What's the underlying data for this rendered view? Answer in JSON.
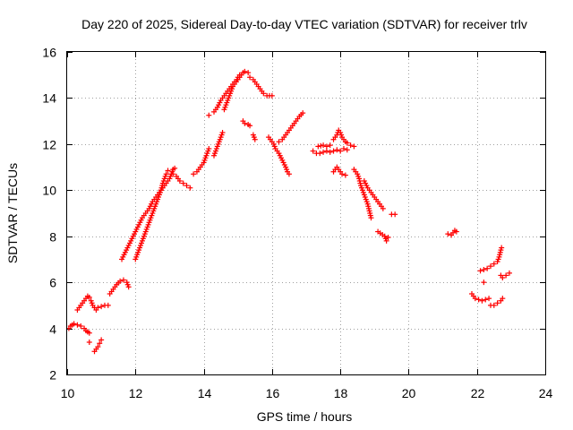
{
  "chart_data": {
    "type": "scatter",
    "title": "Day 220 of 2025, Sidereal Day-to-day VTEC variation (SDTVAR) for receiver trlv",
    "xlabel": "GPS time / hours",
    "ylabel": "SDTVAR / TECUs",
    "xlim": [
      10,
      24
    ],
    "ylim": [
      2,
      16
    ],
    "xticks": [
      "10",
      "12",
      "14",
      "16",
      "18",
      "20",
      "22",
      "24"
    ],
    "yticks": [
      "2",
      "4",
      "6",
      "8",
      "10",
      "12",
      "14",
      "16"
    ],
    "grid": true,
    "marker": "+",
    "color": "#ff0000",
    "series": [
      {
        "name": "trlv",
        "segments": [
          [
            [
              10.05,
              4.0
            ],
            [
              10.1,
              4.1
            ],
            [
              10.15,
              4.15
            ],
            [
              10.2,
              4.2
            ],
            [
              10.3,
              4.15
            ],
            [
              10.4,
              4.1
            ],
            [
              10.5,
              4.0
            ],
            [
              10.55,
              3.9
            ],
            [
              10.6,
              3.85
            ],
            [
              10.65,
              3.8
            ]
          ],
          [
            [
              10.3,
              4.8
            ],
            [
              10.35,
              4.9
            ],
            [
              10.4,
              5.0
            ],
            [
              10.45,
              5.1
            ],
            [
              10.5,
              5.2
            ],
            [
              10.55,
              5.3
            ],
            [
              10.6,
              5.4
            ],
            [
              10.65,
              5.35
            ],
            [
              10.7,
              5.2
            ],
            [
              10.75,
              5.0
            ],
            [
              10.8,
              4.9
            ],
            [
              10.85,
              4.8
            ]
          ],
          [
            [
              10.65,
              3.4
            ]
          ],
          [
            [
              10.8,
              3.0
            ],
            [
              10.85,
              3.1
            ],
            [
              10.9,
              3.2
            ],
            [
              10.95,
              3.35
            ],
            [
              11.0,
              3.5
            ]
          ],
          [
            [
              10.9,
              4.9
            ],
            [
              11.0,
              4.95
            ],
            [
              11.1,
              5.0
            ],
            [
              11.2,
              5.0
            ]
          ],
          [
            [
              11.25,
              5.5
            ],
            [
              11.35,
              5.7
            ],
            [
              11.45,
              5.9
            ],
            [
              11.55,
              6.05
            ],
            [
              11.65,
              6.1
            ],
            [
              11.75,
              6.0
            ],
            [
              11.8,
              5.8
            ]
          ],
          [
            [
              11.6,
              7.0
            ],
            [
              11.7,
              7.3
            ],
            [
              11.8,
              7.6
            ],
            [
              11.9,
              7.9
            ],
            [
              12.0,
              8.2
            ],
            [
              12.1,
              8.5
            ],
            [
              12.2,
              8.8
            ],
            [
              12.3,
              9.0
            ],
            [
              12.4,
              9.2
            ],
            [
              12.5,
              9.5
            ],
            [
              12.6,
              9.7
            ],
            [
              12.7,
              9.9
            ],
            [
              12.8,
              10.1
            ],
            [
              12.9,
              10.3
            ],
            [
              13.0,
              10.5
            ],
            [
              13.05,
              10.7
            ],
            [
              13.1,
              10.9
            ],
            [
              13.15,
              10.95
            ]
          ],
          [
            [
              12.0,
              7.0
            ],
            [
              12.05,
              7.2
            ],
            [
              12.1,
              7.4
            ],
            [
              12.15,
              7.6
            ],
            [
              12.2,
              7.8
            ],
            [
              12.25,
              8.0
            ],
            [
              12.3,
              8.2
            ],
            [
              12.35,
              8.4
            ],
            [
              12.4,
              8.6
            ],
            [
              12.45,
              8.8
            ],
            [
              12.5,
              9.0
            ],
            [
              12.55,
              9.2
            ],
            [
              12.6,
              9.4
            ],
            [
              12.65,
              9.6
            ],
            [
              12.7,
              9.8
            ],
            [
              12.75,
              10.0
            ],
            [
              12.8,
              10.3
            ],
            [
              12.85,
              10.5
            ],
            [
              12.9,
              10.7
            ],
            [
              12.95,
              10.85
            ]
          ],
          [
            [
              13.1,
              10.7
            ],
            [
              13.2,
              10.6
            ],
            [
              13.3,
              10.4
            ],
            [
              13.4,
              10.3
            ],
            [
              13.5,
              10.2
            ],
            [
              13.6,
              10.1
            ]
          ],
          [
            [
              13.7,
              10.7
            ],
            [
              13.8,
              10.8
            ],
            [
              13.9,
              11.0
            ],
            [
              14.0,
              11.2
            ],
            [
              14.05,
              11.4
            ],
            [
              14.1,
              11.6
            ],
            [
              14.15,
              11.8
            ]
          ],
          [
            [
              14.15,
              13.25
            ]
          ],
          [
            [
              14.3,
              11.5
            ],
            [
              14.35,
              11.7
            ],
            [
              14.4,
              11.9
            ],
            [
              14.45,
              12.1
            ],
            [
              14.5,
              12.3
            ],
            [
              14.55,
              12.5
            ]
          ],
          [
            [
              14.3,
              13.4
            ],
            [
              14.4,
              13.6
            ],
            [
              14.5,
              13.9
            ],
            [
              14.6,
              14.1
            ],
            [
              14.7,
              14.3
            ],
            [
              14.8,
              14.5
            ],
            [
              14.9,
              14.7
            ],
            [
              15.0,
              14.8
            ],
            [
              15.05,
              14.9
            ],
            [
              15.1,
              15.0
            ],
            [
              15.15,
              15.1
            ],
            [
              15.2,
              15.15
            ],
            [
              15.3,
              15.1
            ]
          ],
          [
            [
              14.6,
              13.5
            ],
            [
              14.65,
              13.7
            ],
            [
              14.7,
              13.9
            ],
            [
              14.75,
              14.1
            ],
            [
              14.8,
              14.3
            ],
            [
              14.85,
              14.5
            ],
            [
              14.9,
              14.6
            ],
            [
              14.95,
              14.7
            ],
            [
              15.0,
              14.9
            ],
            [
              15.05,
              15.0
            ]
          ],
          [
            [
              15.15,
              13.0
            ],
            [
              15.2,
              12.9
            ],
            [
              15.3,
              12.85
            ],
            [
              15.35,
              12.8
            ]
          ],
          [
            [
              15.35,
              14.9
            ],
            [
              15.45,
              14.8
            ],
            [
              15.55,
              14.6
            ],
            [
              15.65,
              14.4
            ],
            [
              15.75,
              14.2
            ],
            [
              15.85,
              14.1
            ],
            [
              16.0,
              14.1
            ]
          ],
          [
            [
              15.45,
              12.4
            ],
            [
              15.5,
              12.2
            ]
          ],
          [
            [
              15.9,
              12.3
            ],
            [
              16.0,
              12.1
            ],
            [
              16.05,
              12.0
            ],
            [
              16.1,
              11.8
            ],
            [
              16.2,
              11.6
            ],
            [
              16.3,
              11.3
            ],
            [
              16.4,
              11.0
            ],
            [
              16.45,
              10.8
            ],
            [
              16.5,
              10.7
            ]
          ],
          [
            [
              16.2,
              12.1
            ],
            [
              16.3,
              12.2
            ],
            [
              16.4,
              12.4
            ],
            [
              16.5,
              12.6
            ],
            [
              16.6,
              12.8
            ],
            [
              16.7,
              13.0
            ],
            [
              16.8,
              13.2
            ],
            [
              16.9,
              13.35
            ]
          ],
          [
            [
              17.2,
              11.7
            ],
            [
              17.3,
              11.6
            ],
            [
              17.4,
              11.6
            ],
            [
              17.5,
              11.65
            ],
            [
              17.6,
              11.7
            ],
            [
              17.7,
              11.65
            ],
            [
              17.8,
              11.7
            ],
            [
              17.9,
              11.75
            ],
            [
              18.0,
              11.7
            ],
            [
              18.1,
              11.8
            ],
            [
              18.2,
              11.75
            ]
          ],
          [
            [
              17.35,
              11.9
            ],
            [
              17.5,
              11.95
            ],
            [
              17.6,
              11.9
            ],
            [
              17.7,
              11.95
            ]
          ],
          [
            [
              17.8,
              12.2
            ],
            [
              17.9,
              12.4
            ],
            [
              17.95,
              12.6
            ],
            [
              18.0,
              12.5
            ],
            [
              18.05,
              12.3
            ],
            [
              18.1,
              12.2
            ],
            [
              18.15,
              12.1
            ],
            [
              18.2,
              12.05
            ],
            [
              18.3,
              11.95
            ],
            [
              18.4,
              11.9
            ]
          ],
          [
            [
              17.8,
              10.8
            ],
            [
              17.9,
              11.0
            ],
            [
              18.05,
              10.7
            ],
            [
              18.15,
              10.65
            ]
          ],
          [
            [
              18.4,
              10.9
            ],
            [
              18.5,
              10.7
            ],
            [
              18.55,
              10.5
            ],
            [
              18.6,
              10.2
            ],
            [
              18.65,
              10.0
            ],
            [
              18.7,
              9.8
            ],
            [
              18.75,
              9.6
            ],
            [
              18.8,
              9.4
            ],
            [
              18.85,
              9.1
            ],
            [
              18.9,
              8.8
            ]
          ],
          [
            [
              18.7,
              10.4
            ],
            [
              18.8,
              10.1
            ],
            [
              18.9,
              9.9
            ],
            [
              19.0,
              9.7
            ],
            [
              19.1,
              9.5
            ],
            [
              19.2,
              9.3
            ],
            [
              19.25,
              9.2
            ]
          ],
          [
            [
              19.1,
              8.2
            ],
            [
              19.3,
              8.0
            ],
            [
              19.35,
              7.8
            ],
            [
              19.4,
              7.95
            ]
          ],
          [
            [
              19.5,
              8.95
            ],
            [
              19.6,
              8.95
            ]
          ],
          [
            [
              21.15,
              8.1
            ],
            [
              21.25,
              8.05
            ],
            [
              21.3,
              8.15
            ],
            [
              21.35,
              8.25
            ],
            [
              21.4,
              8.2
            ]
          ],
          [
            [
              21.85,
              5.5
            ],
            [
              21.95,
              5.3
            ],
            [
              22.05,
              5.25
            ],
            [
              22.15,
              5.2
            ],
            [
              22.25,
              5.25
            ],
            [
              22.35,
              5.3
            ]
          ],
          [
            [
              22.1,
              6.5
            ],
            [
              22.2,
              6.55
            ],
            [
              22.3,
              6.6
            ],
            [
              22.4,
              6.7
            ],
            [
              22.5,
              6.8
            ],
            [
              22.6,
              6.9
            ],
            [
              22.65,
              7.1
            ],
            [
              22.7,
              7.4
            ],
            [
              22.72,
              7.5
            ]
          ],
          [
            [
              22.2,
              6.0
            ]
          ],
          [
            [
              22.4,
              5.0
            ],
            [
              22.5,
              5.0
            ],
            [
              22.6,
              5.1
            ],
            [
              22.7,
              5.2
            ],
            [
              22.75,
              5.3
            ]
          ],
          [
            [
              22.7,
              6.3
            ],
            [
              22.75,
              6.2
            ],
            [
              22.85,
              6.3
            ],
            [
              22.95,
              6.4
            ]
          ]
        ]
      }
    ]
  }
}
